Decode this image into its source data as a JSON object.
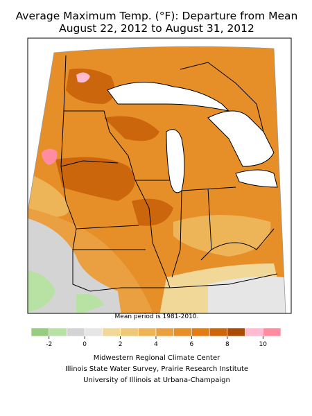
{
  "title": "Average Maximum Temp. (°F): Departure from Mean",
  "subtitle": "August 22, 2012 to August 31, 2012",
  "note": "Mean period is 1981-2010.",
  "legend": {
    "lim": [
      -3,
      11
    ],
    "ticks": [
      -2,
      0,
      2,
      4,
      6,
      8,
      10
    ],
    "colors": [
      "#98cc80",
      "#b8e2a4",
      "#d4d4d4",
      "#e6e6e6",
      "#f2d898",
      "#f0c87a",
      "#eeb458",
      "#eaa040",
      "#e68e28",
      "#e27c14",
      "#cc660c",
      "#a84c06",
      "#ffbcd0",
      "#ff8ca0"
    ]
  },
  "credits": [
    "Midwestern Regional Climate Center",
    "Illinois State Water Survey, Prairie Research Institute",
    "University of Illinois at Urbana-Champaign"
  ]
}
